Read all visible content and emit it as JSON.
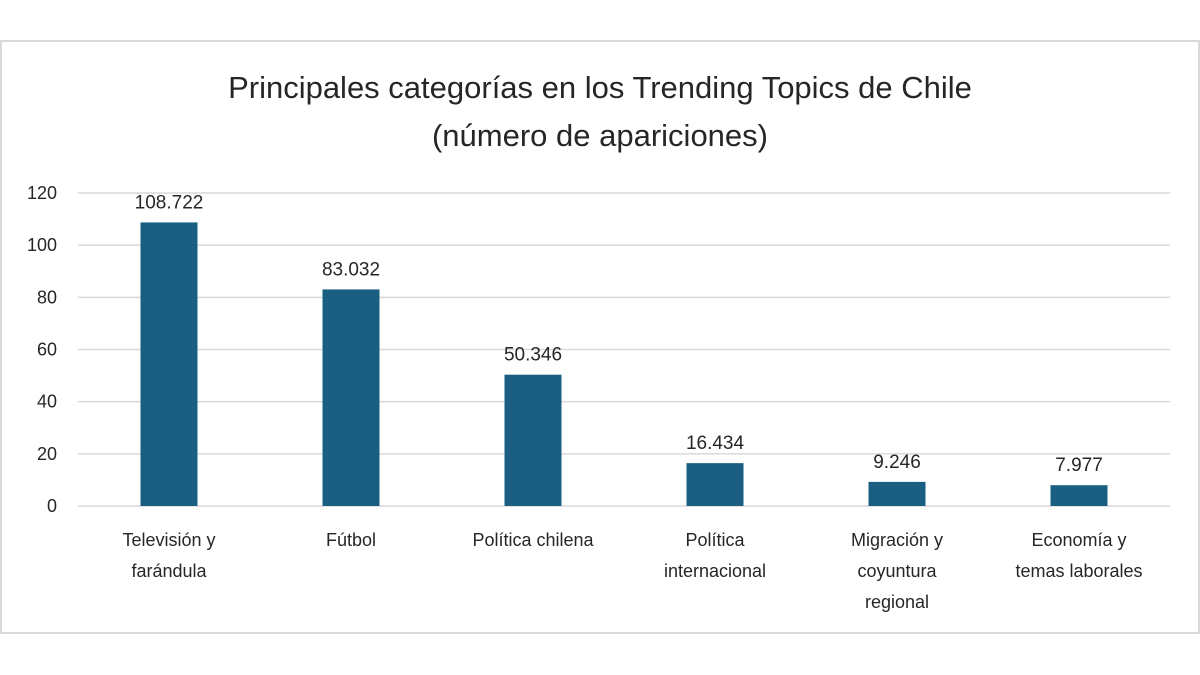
{
  "chart_data": {
    "type": "bar",
    "title_lines": [
      "Principales categorías en los Trending Topics de Chile",
      "(número de apariciones)"
    ],
    "categories": [
      [
        "Televisión y",
        "farándula"
      ],
      [
        "Fútbol"
      ],
      [
        "Política chilena"
      ],
      [
        "Política",
        "internacional"
      ],
      [
        "Migración y",
        "coyuntura",
        "regional"
      ],
      [
        "Economía y",
        "temas laborales"
      ]
    ],
    "values": [
      108.722,
      83.032,
      50.346,
      16.434,
      9.246,
      7.977
    ],
    "data_labels": [
      "108.722",
      "83.032",
      "50.346",
      "16.434",
      "9.246",
      "7.977"
    ],
    "yticks": [
      0,
      20,
      40,
      60,
      80,
      100,
      120
    ],
    "ylim": [
      0,
      120
    ],
    "bar_color": "#1a5f82",
    "grid_color": "#d9d9d9",
    "grid": true,
    "xlabel": "",
    "ylabel": ""
  }
}
